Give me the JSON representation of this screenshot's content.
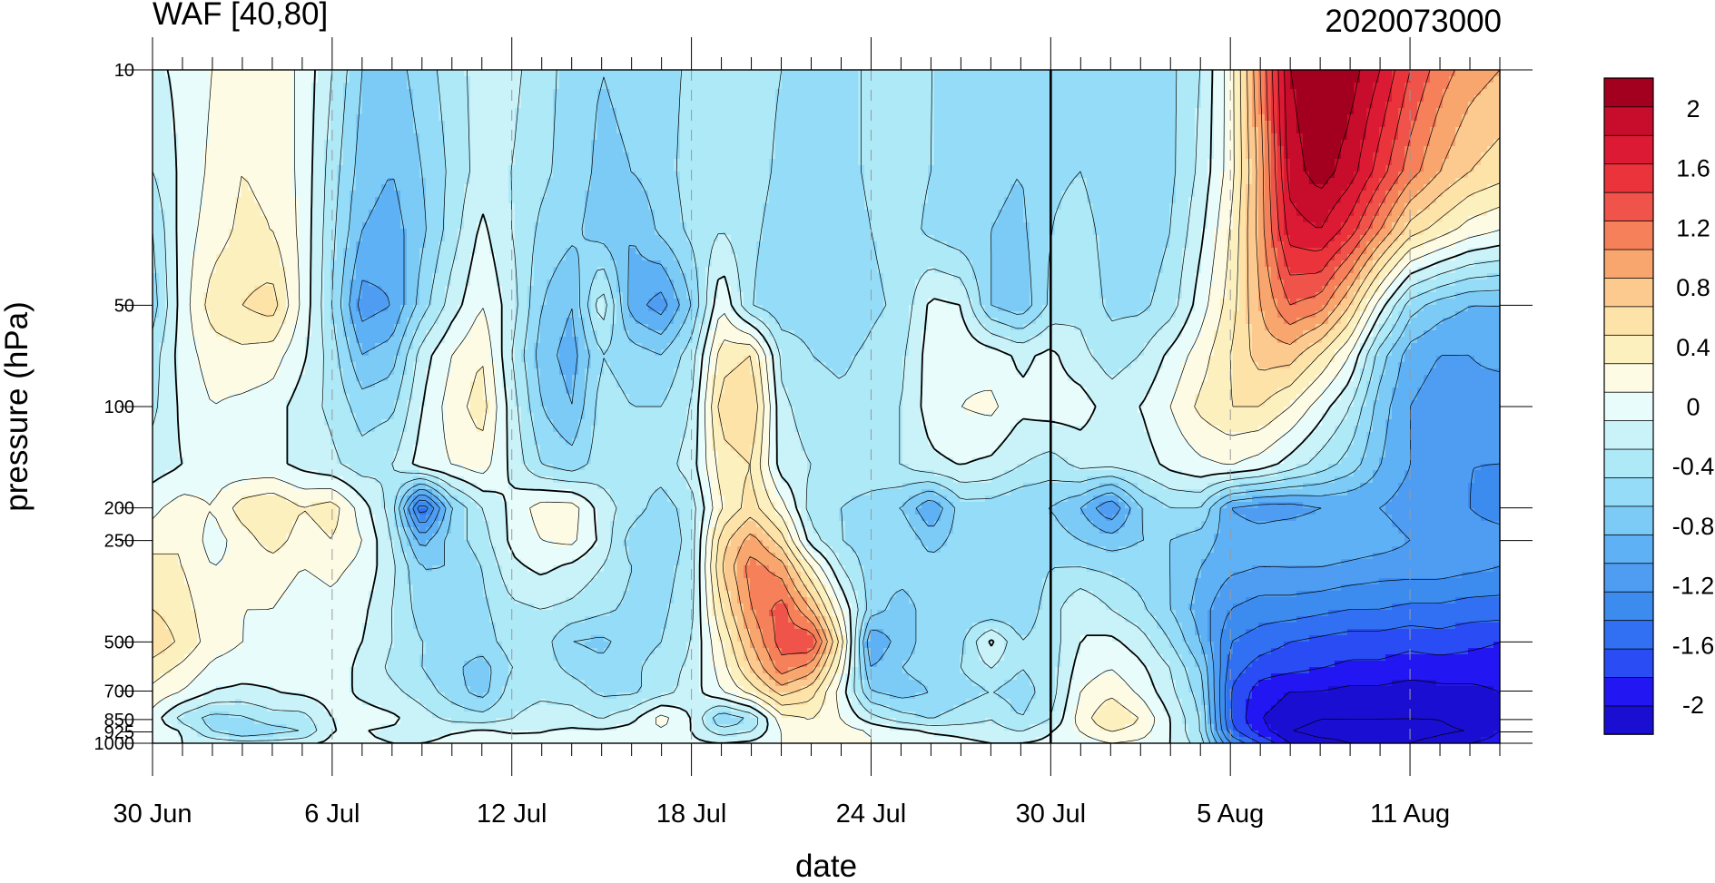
{
  "chart_data": {
    "type": "heatmap",
    "subtype": "filled-contour",
    "title_left": "WAF [40,80]",
    "title_right": "2020073000",
    "xlabel": "date",
    "ylabel": "pressure (hPa)",
    "x_start_date": "2020-06-30",
    "x_range_days": [
      0,
      45
    ],
    "y_scale": "log",
    "y_inverted": true,
    "ylim": [
      1000,
      10
    ],
    "x_ticks": [
      {
        "day": 0,
        "label": "30 Jun"
      },
      {
        "day": 6,
        "label": "6 Jul"
      },
      {
        "day": 12,
        "label": "12 Jul"
      },
      {
        "day": 18,
        "label": "18 Jul"
      },
      {
        "day": 24,
        "label": "24 Jul"
      },
      {
        "day": 30,
        "label": "30 Jul"
      },
      {
        "day": 36,
        "label": "5 Aug"
      },
      {
        "day": 42,
        "label": "11 Aug"
      }
    ],
    "y_ticks": [
      {
        "p": 10,
        "label": "10"
      },
      {
        "p": 50,
        "label": "50"
      },
      {
        "p": 100,
        "label": "100"
      },
      {
        "p": 200,
        "label": "200"
      },
      {
        "p": 250,
        "label": "250"
      },
      {
        "p": 500,
        "label": "500"
      },
      {
        "p": 700,
        "label": "700"
      },
      {
        "p": 850,
        "label": "850"
      },
      {
        "p": 925,
        "label": "925"
      },
      {
        "p": 1000,
        "label": "1000"
      }
    ],
    "vertical_marker_day": 30,
    "colorbar": {
      "levels": [
        -2.2,
        -2.0,
        -1.8,
        -1.6,
        -1.4,
        -1.2,
        -1.0,
        -0.8,
        -0.6,
        -0.4,
        -0.2,
        0,
        0.2,
        0.4,
        0.6,
        0.8,
        1.0,
        1.2,
        1.4,
        1.6,
        1.8,
        2.0,
        2.2
      ],
      "colors": [
        "#1a0ed2",
        "#2216f2",
        "#2a4cf5",
        "#3170f2",
        "#3c8cf0",
        "#4f9df2",
        "#5eb1f4",
        "#7ccbf7",
        "#94dcf8",
        "#aee9f8",
        "#c9f3f9",
        "#e8fcfb",
        "#fefbe5",
        "#fdf0bf",
        "#fde3a8",
        "#fcc98f",
        "#f9a56e",
        "#f6805a",
        "#ef5349",
        "#ea333a",
        "#dc1a34",
        "#c80d2c",
        "#a2001e"
      ],
      "labels": [
        {
          "value": 2,
          "label": "2"
        },
        {
          "value": 1.6,
          "label": "1.6"
        },
        {
          "value": 1.2,
          "label": "1.2"
        },
        {
          "value": 0.8,
          "label": "0.8"
        },
        {
          "value": 0.4,
          "label": "0.4"
        },
        {
          "value": 0,
          "label": "0"
        },
        {
          "value": -0.4,
          "label": "-0.4"
        },
        {
          "value": -0.8,
          "label": "-0.8"
        },
        {
          "value": -1.2,
          "label": "-1.2"
        },
        {
          "value": -1.6,
          "label": "-1.6"
        },
        {
          "value": -2,
          "label": "-2"
        }
      ]
    },
    "pressure_levels": [
      10,
      20,
      30,
      50,
      70,
      100,
      150,
      200,
      250,
      300,
      400,
      500,
      600,
      700,
      850,
      925,
      1000
    ],
    "days": [
      0,
      1,
      2,
      3,
      4,
      5,
      6,
      7,
      8,
      9,
      10,
      11,
      12,
      13,
      14,
      15,
      16,
      17,
      18,
      19,
      20,
      21,
      22,
      23,
      24,
      25,
      26,
      27,
      28,
      29,
      30,
      31,
      32,
      33,
      34,
      35,
      36,
      37,
      38,
      39,
      40,
      41,
      42,
      43,
      44,
      45
    ],
    "values": [
      [
        -0.05,
        0.05,
        0.2,
        0.4,
        0.35,
        0.15,
        -0.2,
        -0.6,
        -0.7,
        -0.5,
        -0.3,
        -0.1,
        -0.15,
        -0.3,
        -0.5,
        -0.6,
        -0.55,
        -0.5,
        -0.35,
        -0.2,
        -0.3,
        -0.4,
        -0.45,
        -0.5,
        -0.35,
        -0.3,
        -0.4,
        -0.45,
        -0.5,
        -0.55,
        -0.45,
        -0.4,
        -0.5,
        -0.6,
        -0.45,
        -0.2,
        0.3,
        1.2,
        2.2,
        2.4,
        2.3,
        2.0,
        1.6,
        1.3,
        1.1,
        1.0
      ],
      [
        -0.2,
        0.05,
        0.25,
        0.4,
        0.35,
        0.15,
        -0.3,
        -0.7,
        -0.8,
        -0.6,
        -0.35,
        -0.1,
        -0.2,
        -0.35,
        -0.5,
        -0.65,
        -0.6,
        -0.5,
        -0.3,
        -0.2,
        -0.3,
        -0.45,
        -0.5,
        -0.5,
        -0.35,
        -0.3,
        -0.4,
        -0.5,
        -0.55,
        -0.6,
        -0.45,
        -0.4,
        -0.55,
        -0.6,
        -0.45,
        -0.15,
        0.3,
        1.1,
        2.1,
        2.3,
        2.1,
        1.7,
        1.3,
        1.0,
        0.8,
        0.7
      ],
      [
        -0.4,
        0.1,
        0.3,
        0.45,
        0.4,
        0.15,
        -0.35,
        -0.8,
        -0.9,
        -0.65,
        -0.3,
        0.05,
        -0.2,
        -0.45,
        -0.55,
        -0.7,
        -0.8,
        -0.55,
        -0.35,
        -0.2,
        -0.35,
        -0.5,
        -0.5,
        -0.55,
        -0.4,
        -0.3,
        -0.45,
        -0.55,
        -0.6,
        -0.65,
        -0.4,
        -0.3,
        -0.5,
        -0.55,
        -0.4,
        -0.05,
        0.4,
        1.1,
        1.9,
        2.0,
        1.7,
        1.2,
        0.7,
        0.5,
        0.3,
        0.2
      ],
      [
        -0.5,
        0.1,
        0.5,
        0.6,
        0.7,
        0.15,
        -0.4,
        -1.1,
        -1.0,
        -0.5,
        -0.1,
        0.2,
        -0.1,
        -0.6,
        -0.8,
        -0.05,
        -0.9,
        -1.1,
        -0.6,
        0.2,
        -0.4,
        -0.55,
        -0.5,
        -0.6,
        -0.45,
        -0.35,
        0.05,
        0.0,
        -0.6,
        -0.75,
        -0.35,
        -0.25,
        -0.45,
        -0.45,
        -0.3,
        0.1,
        0.5,
        1.0,
        1.4,
        1.3,
        0.8,
        0.1,
        -0.5,
        -0.7,
        -0.8,
        -0.8
      ],
      [
        -0.3,
        0.1,
        0.3,
        0.35,
        0.3,
        0.05,
        -0.3,
        -0.8,
        -0.7,
        -0.1,
        0.2,
        0.4,
        -0.2,
        -0.7,
        -0.9,
        -0.4,
        -0.5,
        -0.6,
        -0.3,
        0.5,
        0.6,
        -0.25,
        -0.4,
        -0.45,
        -0.35,
        -0.25,
        0.1,
        0.15,
        0.1,
        -0.05,
        0.05,
        -0.15,
        -0.3,
        -0.2,
        0.05,
        0.3,
        0.6,
        0.9,
        0.9,
        0.6,
        0.2,
        -0.5,
        -0.9,
        -1.0,
        -1.0,
        -0.9
      ],
      [
        -0.25,
        0.05,
        0.2,
        0.15,
        0.1,
        -0.1,
        -0.25,
        -0.5,
        -0.45,
        0.0,
        0.3,
        0.5,
        -0.1,
        -0.6,
        -0.8,
        -0.3,
        -0.4,
        -0.4,
        -0.2,
        0.7,
        0.8,
        -0.15,
        -0.3,
        -0.35,
        -0.3,
        -0.2,
        0.1,
        0.2,
        0.25,
        0.05,
        0.1,
        0.1,
        -0.1,
        0.0,
        0.2,
        0.45,
        0.6,
        0.6,
        0.4,
        0.1,
        -0.2,
        -0.7,
        -1.0,
        -1.1,
        -1.1,
        -1.2
      ],
      [
        -0.1,
        0.0,
        0.1,
        0.05,
        0.05,
        -0.05,
        -0.15,
        -0.3,
        -0.2,
        0.1,
        0.2,
        0.3,
        -0.05,
        -0.4,
        -0.5,
        -0.3,
        -0.35,
        -0.3,
        -0.1,
        0.5,
        0.6,
        -0.1,
        -0.2,
        -0.25,
        -0.25,
        -0.2,
        -0.05,
        0.0,
        -0.05,
        -0.2,
        -0.3,
        -0.15,
        -0.15,
        -0.1,
        0.05,
        0.15,
        0.2,
        0.1,
        -0.1,
        -0.3,
        -0.5,
        -0.8,
        -1.0,
        -1.1,
        -1.2,
        -1.2
      ],
      [
        0.15,
        0.3,
        0.2,
        0.5,
        0.6,
        0.4,
        0.5,
        0.1,
        -0.3,
        -1.6,
        -0.6,
        -0.2,
        0.05,
        0.3,
        0.3,
        -0.1,
        -0.3,
        -0.5,
        -0.3,
        0.4,
        0.7,
        0.3,
        -0.3,
        -0.4,
        -0.5,
        -0.6,
        -1.0,
        -0.5,
        -0.5,
        -0.6,
        -0.6,
        -0.8,
        -1.2,
        -0.6,
        -0.4,
        -0.4,
        -1.0,
        -1.1,
        -1.1,
        -1.0,
        -1.0,
        -1.0,
        -1.1,
        -1.1,
        -1.2,
        -1.3
      ],
      [
        0.3,
        0.4,
        0.1,
        0.3,
        0.5,
        0.3,
        0.4,
        0.2,
        -0.2,
        -0.9,
        -0.5,
        -0.3,
        0.05,
        0.2,
        0.25,
        -0.05,
        -0.5,
        -0.6,
        -0.3,
        0.7,
        1.1,
        0.7,
        -0.1,
        -0.4,
        -0.5,
        -0.4,
        -0.7,
        -0.5,
        -0.5,
        -0.55,
        -0.5,
        -0.6,
        -0.7,
        -0.6,
        -0.6,
        -0.7,
        -0.9,
        -0.9,
        -0.8,
        -0.8,
        -0.85,
        -0.9,
        -1.0,
        -1.0,
        -1.1,
        -1.1
      ],
      [
        0.5,
        0.4,
        0.2,
        0.25,
        0.3,
        0.2,
        0.25,
        0.15,
        -0.15,
        -0.6,
        -0.6,
        -0.4,
        -0.05,
        0.05,
        -0.05,
        -0.2,
        -0.4,
        -0.5,
        -0.3,
        0.8,
        1.3,
        1.1,
        0.4,
        -0.2,
        -0.5,
        -0.5,
        -0.5,
        -0.5,
        -0.55,
        -0.55,
        -0.4,
        -0.4,
        -0.45,
        -0.5,
        -0.6,
        -0.8,
        -0.95,
        -1.0,
        -1.0,
        -1.0,
        -1.05,
        -1.1,
        -1.1,
        -1.1,
        -1.15,
        -1.2
      ],
      [
        0.6,
        0.5,
        0.25,
        0.2,
        0.2,
        0.1,
        0.15,
        0.05,
        -0.2,
        -0.5,
        -0.55,
        -0.45,
        -0.25,
        -0.2,
        -0.25,
        -0.35,
        -0.45,
        -0.45,
        -0.25,
        0.6,
        1.2,
        1.5,
        1.0,
        0.2,
        -0.5,
        -0.7,
        -0.5,
        -0.55,
        -0.6,
        -0.55,
        -0.3,
        0.0,
        -0.2,
        -0.35,
        -0.6,
        -0.9,
        -1.2,
        -1.3,
        -1.3,
        -1.35,
        -1.4,
        -1.4,
        -1.45,
        -1.45,
        -1.5,
        -1.5
      ],
      [
        0.75,
        0.55,
        0.3,
        0.2,
        0.15,
        0.1,
        0.1,
        0.0,
        -0.2,
        -0.4,
        -0.5,
        -0.5,
        -0.3,
        -0.3,
        -0.6,
        -0.65,
        -0.5,
        -0.4,
        -0.2,
        0.4,
        1.0,
        1.5,
        1.6,
        0.5,
        -1.0,
        -0.7,
        -0.5,
        -0.45,
        0.05,
        -0.4,
        -0.3,
        0.0,
        0.05,
        -0.1,
        -0.4,
        -0.8,
        -1.4,
        -1.5,
        -1.6,
        -1.65,
        -1.7,
        -1.7,
        -1.75,
        -1.7,
        -1.75,
        -1.8
      ],
      [
        0.5,
        0.35,
        0.15,
        0.1,
        0.05,
        0.05,
        0.1,
        -0.05,
        -0.25,
        -0.4,
        -0.55,
        -0.7,
        -0.4,
        -0.3,
        -0.45,
        -0.55,
        -0.45,
        -0.3,
        -0.15,
        0.3,
        0.8,
        1.3,
        1.1,
        0.3,
        -0.8,
        -0.6,
        -0.5,
        -0.4,
        -0.2,
        -0.4,
        -0.3,
        0.1,
        0.2,
        0.05,
        -0.2,
        -0.6,
        -1.5,
        -1.7,
        -1.75,
        -1.8,
        -1.85,
        -1.85,
        -1.9,
        -1.9,
        -1.9,
        -1.9
      ],
      [
        0.35,
        0.2,
        0.0,
        -0.05,
        0.0,
        0.05,
        0.1,
        -0.05,
        -0.15,
        -0.3,
        -0.5,
        -0.7,
        -0.3,
        -0.25,
        -0.3,
        -0.45,
        -0.45,
        -0.3,
        -0.1,
        0.2,
        0.5,
        0.9,
        0.7,
        0.1,
        -0.6,
        -0.7,
        -0.6,
        -0.5,
        -0.4,
        -0.5,
        -0.3,
        0.2,
        0.35,
        0.15,
        -0.15,
        -0.5,
        -1.6,
        -1.9,
        -2.0,
        -2.0,
        -2.05,
        -2.05,
        -2.1,
        -2.05,
        -2.05,
        -2.0
      ],
      [
        0.1,
        -0.3,
        -0.5,
        -0.45,
        -0.3,
        -0.3,
        0.0,
        0.1,
        0.05,
        -0.1,
        -0.25,
        -0.3,
        -0.2,
        -0.1,
        -0.1,
        -0.2,
        -0.05,
        0.3,
        0.0,
        -0.6,
        -0.4,
        0.3,
        0.4,
        0.2,
        -0.1,
        -0.3,
        -0.4,
        -0.3,
        -0.2,
        -0.4,
        -0.2,
        0.3,
        0.6,
        0.4,
        0.0,
        -0.4,
        -1.6,
        -2.0,
        -2.1,
        -2.2,
        -2.2,
        -2.2,
        -2.2,
        -2.2,
        -2.1,
        -2.0
      ],
      [
        0.2,
        0.0,
        -0.4,
        -0.6,
        -0.5,
        -0.4,
        0.0,
        0.0,
        -0.05,
        -0.1,
        0.0,
        0.05,
        0.0,
        0.0,
        0.05,
        0.05,
        0.1,
        0.15,
        0.0,
        -0.3,
        -0.2,
        0.2,
        0.4,
        0.3,
        0.2,
        0.1,
        0.0,
        -0.05,
        -0.1,
        -0.2,
        0.0,
        0.2,
        0.4,
        0.3,
        0.0,
        -0.4,
        -1.5,
        -1.9,
        -2.2,
        -2.3,
        -2.3,
        -2.3,
        -2.3,
        -2.25,
        -2.2,
        -2.0
      ],
      [
        0.05,
        0.0,
        -0.05,
        -0.1,
        -0.1,
        -0.05,
        0.05,
        0.05,
        0.0,
        0.0,
        0.05,
        0.05,
        0.05,
        0.05,
        0.05,
        0.05,
        0.05,
        0.1,
        0.05,
        0.0,
        0.05,
        0.2,
        0.3,
        0.25,
        0.2,
        0.15,
        0.1,
        0.05,
        0.0,
        0.0,
        0.05,
        0.1,
        0.2,
        0.15,
        0.0,
        -0.3,
        -1.2,
        -1.6,
        -2.0,
        -2.1,
        -2.2,
        -2.2,
        -2.2,
        -2.1,
        -2.0,
        -1.9
      ]
    ]
  }
}
